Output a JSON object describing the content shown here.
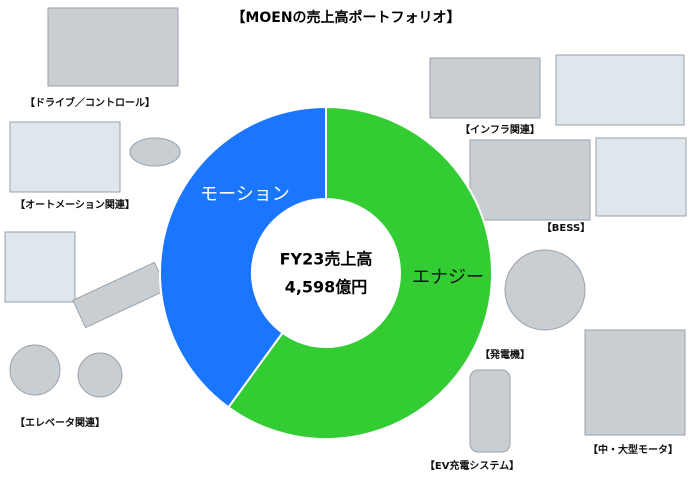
{
  "chart_data": {
    "type": "donut",
    "title": "【MOENの売上高ポートフォリオ】",
    "center_text": [
      "FY23売上高",
      "4,598億円"
    ],
    "categories": [
      "エナジー",
      "モーション"
    ],
    "values": [
      60,
      40
    ],
    "colors": [
      "#33cc33",
      "#1a75ff"
    ]
  },
  "captions": [
    "【ドライブ／コントロール】",
    "【オートメーション関連】",
    "【エレベータ関連】",
    "【インフラ関連】",
    "【BESS】",
    "【発電機】",
    "【中・大型モータ】",
    "【EV充電システム】"
  ]
}
